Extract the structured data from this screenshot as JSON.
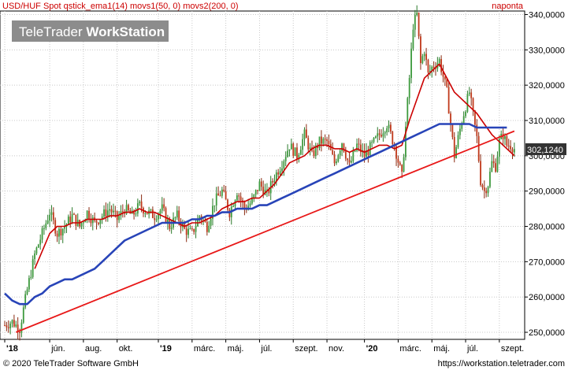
{
  "chart_data": {
    "type": "line",
    "title": "USD/HUF Spot qstick_ema1(14) movs1(50, 0) movs2(200, 0)",
    "periodicity": "naponta",
    "watermark": {
      "prefix": "TeleTrader ",
      "suffix": "WorkStation"
    },
    "last_value": "302,1240",
    "y_ticks": [
      "340,0000",
      "330,0000",
      "320,0000",
      "310,0000",
      "300,0000",
      "290,0000",
      "280,0000",
      "270,0000",
      "260,0000",
      "250,0000"
    ],
    "y_tick_values": [
      340,
      330,
      320,
      310,
      300,
      290,
      280,
      270,
      260,
      250
    ],
    "ylim": [
      248,
      341
    ],
    "grid": true,
    "x_ticks": [
      {
        "label": "'18",
        "pos": 0,
        "bold": true
      },
      {
        "label": "jún.",
        "pos": 24,
        "bold": false
      },
      {
        "label": "aug.",
        "pos": 42,
        "bold": false
      },
      {
        "label": "okt.",
        "pos": 60,
        "bold": false
      },
      {
        "label": "'19",
        "pos": 82,
        "bold": true
      },
      {
        "label": "márc.",
        "pos": 100,
        "bold": false
      },
      {
        "label": "máj.",
        "pos": 118,
        "bold": false
      },
      {
        "label": "júl.",
        "pos": 136,
        "bold": false
      },
      {
        "label": "szept.",
        "pos": 154,
        "bold": false
      },
      {
        "label": "nov.",
        "pos": 172,
        "bold": false
      },
      {
        "label": "'20",
        "pos": 192,
        "bold": true
      },
      {
        "label": "márc.",
        "pos": 210,
        "bold": false
      },
      {
        "label": "máj.",
        "pos": 228,
        "bold": false
      },
      {
        "label": "júl.",
        "pos": 246,
        "bold": false
      },
      {
        "label": "szept.",
        "pos": 264,
        "bold": false
      }
    ],
    "x_max": 275,
    "price_anchors": [
      [
        0,
        252
      ],
      [
        4,
        253
      ],
      [
        8,
        251
      ],
      [
        12,
        262
      ],
      [
        16,
        272
      ],
      [
        20,
        278
      ],
      [
        24,
        284
      ],
      [
        28,
        278
      ],
      [
        32,
        280
      ],
      [
        36,
        283
      ],
      [
        40,
        280
      ],
      [
        44,
        284
      ],
      [
        48,
        281
      ],
      [
        52,
        283
      ],
      [
        56,
        285
      ],
      [
        60,
        282
      ],
      [
        64,
        285
      ],
      [
        68,
        283
      ],
      [
        72,
        286
      ],
      [
        76,
        284
      ],
      [
        80,
        283
      ],
      [
        84,
        285
      ],
      [
        88,
        280
      ],
      [
        92,
        283
      ],
      [
        96,
        279
      ],
      [
        100,
        278
      ],
      [
        104,
        283
      ],
      [
        108,
        280
      ],
      [
        112,
        287
      ],
      [
        116,
        290
      ],
      [
        120,
        284
      ],
      [
        124,
        290
      ],
      [
        128,
        285
      ],
      [
        132,
        287
      ],
      [
        136,
        292
      ],
      [
        140,
        289
      ],
      [
        144,
        294
      ],
      [
        148,
        298
      ],
      [
        152,
        303
      ],
      [
        156,
        300
      ],
      [
        160,
        306
      ],
      [
        164,
        300
      ],
      [
        168,
        304
      ],
      [
        172,
        304
      ],
      [
        176,
        298
      ],
      [
        180,
        304
      ],
      [
        184,
        297
      ],
      [
        188,
        303
      ],
      [
        192,
        300
      ],
      [
        196,
        303
      ],
      [
        200,
        306
      ],
      [
        204,
        309
      ],
      [
        208,
        303
      ],
      [
        212,
        294
      ],
      [
        216,
        322
      ],
      [
        218,
        337
      ],
      [
        220,
        340
      ],
      [
        222,
        326
      ],
      [
        224,
        330
      ],
      [
        226,
        323
      ],
      [
        228,
        325
      ],
      [
        232,
        327
      ],
      [
        236,
        318
      ],
      [
        240,
        300
      ],
      [
        244,
        310
      ],
      [
        248,
        318
      ],
      [
        252,
        305
      ],
      [
        254,
        293
      ],
      [
        256,
        290
      ],
      [
        258,
        292
      ],
      [
        260,
        298
      ],
      [
        262,
        297
      ],
      [
        264,
        304
      ],
      [
        266,
        306
      ],
      [
        268,
        303
      ],
      [
        270,
        303
      ],
      [
        272,
        302
      ]
    ],
    "series": [
      {
        "name": "movs1(50, 0)",
        "color": "#cc0000",
        "width": 1.6,
        "points": [
          [
            16,
            268
          ],
          [
            20,
            273
          ],
          [
            24,
            278
          ],
          [
            28,
            280
          ],
          [
            32,
            280
          ],
          [
            36,
            281
          ],
          [
            40,
            281
          ],
          [
            44,
            282
          ],
          [
            48,
            282
          ],
          [
            52,
            282
          ],
          [
            56,
            283
          ],
          [
            60,
            283
          ],
          [
            64,
            284
          ],
          [
            68,
            284
          ],
          [
            72,
            285
          ],
          [
            76,
            284
          ],
          [
            80,
            284
          ],
          [
            84,
            283
          ],
          [
            88,
            282
          ],
          [
            92,
            281
          ],
          [
            96,
            280
          ],
          [
            100,
            281
          ],
          [
            104,
            281
          ],
          [
            108,
            282
          ],
          [
            112,
            283
          ],
          [
            116,
            285
          ],
          [
            120,
            286
          ],
          [
            124,
            287
          ],
          [
            128,
            287
          ],
          [
            132,
            288
          ],
          [
            136,
            288
          ],
          [
            140,
            290
          ],
          [
            144,
            292
          ],
          [
            148,
            295
          ],
          [
            152,
            298
          ],
          [
            156,
            299
          ],
          [
            160,
            300
          ],
          [
            164,
            302
          ],
          [
            168,
            303
          ],
          [
            172,
            303
          ],
          [
            176,
            302
          ],
          [
            180,
            302
          ],
          [
            184,
            301
          ],
          [
            188,
            302
          ],
          [
            192,
            301
          ],
          [
            196,
            302
          ],
          [
            200,
            303
          ],
          [
            204,
            303
          ],
          [
            208,
            302
          ],
          [
            212,
            303
          ],
          [
            216,
            310
          ],
          [
            220,
            316
          ],
          [
            224,
            322
          ],
          [
            228,
            324
          ],
          [
            232,
            326
          ],
          [
            236,
            322
          ],
          [
            240,
            318
          ],
          [
            244,
            316
          ],
          [
            248,
            314
          ],
          [
            252,
            312
          ],
          [
            256,
            309
          ],
          [
            260,
            306
          ],
          [
            264,
            304
          ],
          [
            268,
            302
          ],
          [
            272,
            300
          ]
        ]
      },
      {
        "name": "movs2(200, 0)",
        "color": "#2844b8",
        "width": 2.6,
        "points": [
          [
            0,
            261
          ],
          [
            4,
            259
          ],
          [
            8,
            258
          ],
          [
            12,
            258
          ],
          [
            16,
            260
          ],
          [
            20,
            261
          ],
          [
            24,
            263
          ],
          [
            28,
            264
          ],
          [
            32,
            265
          ],
          [
            36,
            265
          ],
          [
            40,
            266
          ],
          [
            44,
            267
          ],
          [
            48,
            268
          ],
          [
            52,
            270
          ],
          [
            56,
            272
          ],
          [
            60,
            274
          ],
          [
            64,
            276
          ],
          [
            68,
            277
          ],
          [
            72,
            278
          ],
          [
            76,
            279
          ],
          [
            80,
            280
          ],
          [
            84,
            281
          ],
          [
            88,
            281
          ],
          [
            92,
            281
          ],
          [
            96,
            281
          ],
          [
            100,
            282
          ],
          [
            104,
            282
          ],
          [
            108,
            283
          ],
          [
            112,
            283
          ],
          [
            116,
            284
          ],
          [
            120,
            284
          ],
          [
            124,
            285
          ],
          [
            128,
            285
          ],
          [
            132,
            285
          ],
          [
            136,
            286
          ],
          [
            140,
            286
          ],
          [
            144,
            287
          ],
          [
            148,
            288
          ],
          [
            152,
            289
          ],
          [
            156,
            290
          ],
          [
            160,
            291
          ],
          [
            164,
            292
          ],
          [
            168,
            293
          ],
          [
            172,
            294
          ],
          [
            176,
            295
          ],
          [
            180,
            296
          ],
          [
            184,
            297
          ],
          [
            188,
            298
          ],
          [
            192,
            299
          ],
          [
            196,
            300
          ],
          [
            200,
            301
          ],
          [
            204,
            302
          ],
          [
            208,
            303
          ],
          [
            212,
            304
          ],
          [
            216,
            305
          ],
          [
            220,
            306
          ],
          [
            224,
            307
          ],
          [
            228,
            308
          ],
          [
            232,
            309
          ],
          [
            236,
            309
          ],
          [
            240,
            309
          ],
          [
            244,
            309
          ],
          [
            248,
            309
          ],
          [
            252,
            308
          ],
          [
            256,
            308
          ],
          [
            260,
            308
          ],
          [
            264,
            308
          ],
          [
            268,
            308
          ]
        ]
      },
      {
        "name": "trendline",
        "color": "#e81818",
        "width": 1.8,
        "points": [
          [
            6,
            250
          ],
          [
            272,
            307
          ]
        ]
      }
    ]
  },
  "footer": {
    "copyright": "© 2020 TeleTrader Software GmbH",
    "url": "https://workstation.teletrader.com"
  }
}
